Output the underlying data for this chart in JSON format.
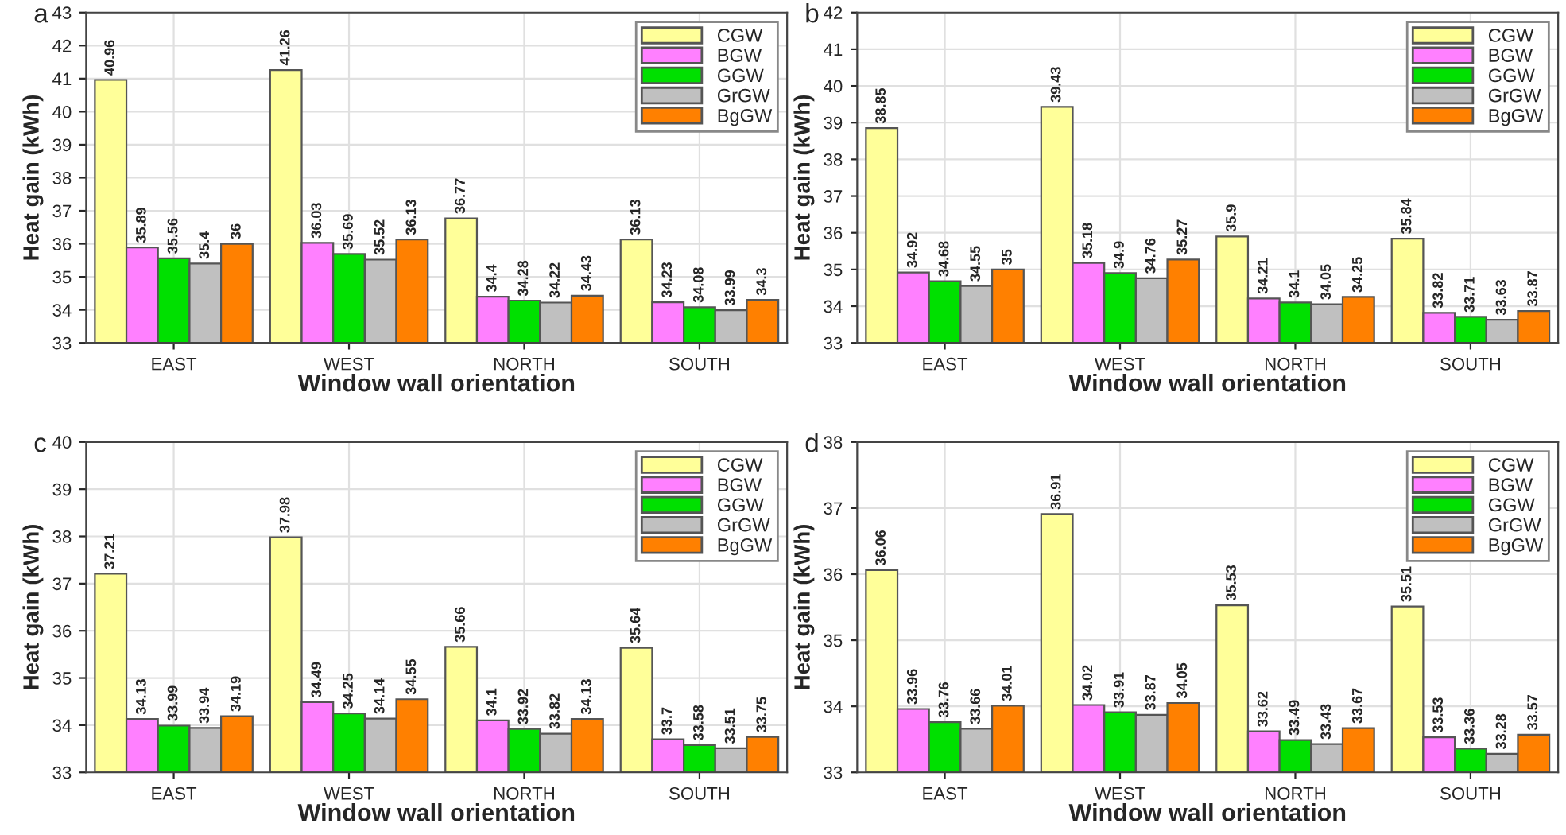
{
  "chart_data": [
    {
      "type": "bar",
      "title": "a",
      "xlabel": "Window wall orientation",
      "ylabel": "Heat gain (kWh)",
      "categories": [
        "EAST",
        "WEST",
        "NORTH",
        "SOUTH"
      ],
      "ylim": [
        33,
        43
      ],
      "yticks": [
        33,
        34,
        35,
        36,
        37,
        38,
        39,
        40,
        41,
        42,
        43
      ],
      "grid": true,
      "legend": "top right",
      "data_labels": true,
      "series": [
        {
          "name": "CGW",
          "color": "#ffff99",
          "values": [
            40.96,
            41.26,
            36.77,
            36.13
          ]
        },
        {
          "name": "BGW",
          "color": "#ff80ff",
          "values": [
            35.89,
            36.03,
            34.4,
            34.23
          ]
        },
        {
          "name": "GGW",
          "color": "#00e000",
          "values": [
            35.56,
            35.69,
            34.28,
            34.08
          ]
        },
        {
          "name": "GrGW",
          "color": "#c0c0c0",
          "values": [
            35.4,
            35.52,
            34.22,
            33.99
          ]
        },
        {
          "name": "BgGW",
          "color": "#ff8000",
          "values": [
            36,
            36.13,
            34.43,
            34.3
          ]
        }
      ]
    },
    {
      "type": "bar",
      "title": "b",
      "xlabel": "Window wall orientation",
      "ylabel": "Heat gain (kWh)",
      "categories": [
        "EAST",
        "WEST",
        "NORTH",
        "SOUTH"
      ],
      "ylim": [
        33,
        42
      ],
      "yticks": [
        33,
        34,
        35,
        36,
        37,
        38,
        39,
        40,
        41,
        42
      ],
      "grid": true,
      "legend": "top right",
      "data_labels": true,
      "series": [
        {
          "name": "CGW",
          "color": "#ffff99",
          "values": [
            38.85,
            39.43,
            35.9,
            35.84
          ]
        },
        {
          "name": "BGW",
          "color": "#ff80ff",
          "values": [
            34.92,
            35.18,
            34.21,
            33.82
          ]
        },
        {
          "name": "GGW",
          "color": "#00e000",
          "values": [
            34.68,
            34.9,
            34.1,
            33.71
          ]
        },
        {
          "name": "GrGW",
          "color": "#c0c0c0",
          "values": [
            34.55,
            34.76,
            34.05,
            33.63
          ]
        },
        {
          "name": "BgGW",
          "color": "#ff8000",
          "values": [
            35,
            35.27,
            34.25,
            33.87
          ]
        }
      ]
    },
    {
      "type": "bar",
      "title": "c",
      "xlabel": "Window wall orientation",
      "ylabel": "Heat gain (kWh)",
      "categories": [
        "EAST",
        "WEST",
        "NORTH",
        "SOUTH"
      ],
      "ylim": [
        33,
        40
      ],
      "yticks": [
        33,
        34,
        35,
        36,
        37,
        38,
        39,
        40
      ],
      "grid": true,
      "legend": "top right",
      "data_labels": true,
      "series": [
        {
          "name": "CGW",
          "color": "#ffff99",
          "values": [
            37.21,
            37.98,
            35.66,
            35.64
          ]
        },
        {
          "name": "BGW",
          "color": "#ff80ff",
          "values": [
            34.13,
            34.49,
            34.1,
            33.7
          ]
        },
        {
          "name": "GGW",
          "color": "#00e000",
          "values": [
            33.99,
            34.25,
            33.92,
            33.58
          ]
        },
        {
          "name": "GrGW",
          "color": "#c0c0c0",
          "values": [
            33.94,
            34.14,
            33.82,
            33.51
          ]
        },
        {
          "name": "BgGW",
          "color": "#ff8000",
          "values": [
            34.19,
            34.55,
            34.13,
            33.75
          ]
        }
      ]
    },
    {
      "type": "bar",
      "title": "d",
      "xlabel": "Window wall orientation",
      "ylabel": "Heat gain (kWh)",
      "categories": [
        "EAST",
        "WEST",
        "NORTH",
        "SOUTH"
      ],
      "ylim": [
        33,
        38
      ],
      "yticks": [
        33,
        34,
        35,
        36,
        37,
        38
      ],
      "grid": true,
      "legend": "top right",
      "data_labels": true,
      "series": [
        {
          "name": "CGW",
          "color": "#ffff99",
          "values": [
            36.06,
            36.91,
            35.53,
            35.51
          ]
        },
        {
          "name": "BGW",
          "color": "#ff80ff",
          "values": [
            33.96,
            34.02,
            33.62,
            33.53
          ]
        },
        {
          "name": "GGW",
          "color": "#00e000",
          "values": [
            33.76,
            33.91,
            33.49,
            33.36
          ]
        },
        {
          "name": "GrGW",
          "color": "#c0c0c0",
          "values": [
            33.66,
            33.87,
            33.43,
            33.28
          ]
        },
        {
          "name": "BgGW",
          "color": "#ff8000",
          "values": [
            34.01,
            34.05,
            33.67,
            33.57
          ]
        }
      ]
    }
  ]
}
